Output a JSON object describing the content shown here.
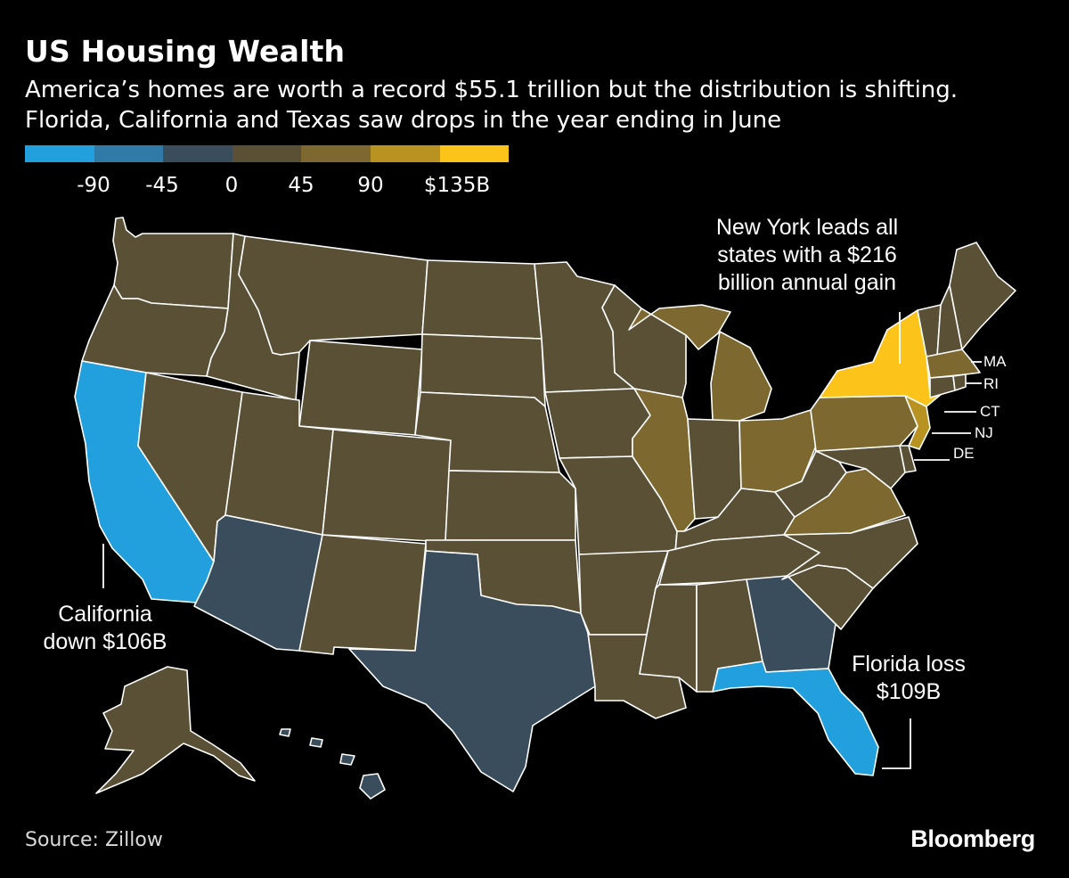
{
  "title": "US Housing Wealth",
  "subtitle_lines": [
    "America’s homes are worth a record $55.1 trillion but the distribution is shifting.",
    "Florida, California and Texas saw drops in the year ending in June"
  ],
  "legend": {
    "colors": [
      "#22a0dd",
      "#2f7aa6",
      "#3a4d5c",
      "#5a5035",
      "#7d6930",
      "#b89322",
      "#fcc41b"
    ],
    "ticks": [
      "-90",
      "-45",
      "0",
      "45",
      "90",
      "$135B"
    ]
  },
  "map": {
    "colors": {
      "california": "#22a0dd",
      "florida": "#22a0dd",
      "texas": "#3a4d5c",
      "arizona": "#3a4d5c",
      "georgia": "#3a4d5c",
      "new_york": "#fcc41b",
      "new_jersey": "#b89322",
      "illinois": "#7d6930",
      "michigan": "#7d6930",
      "ohio": "#7d6930",
      "pennsylvania": "#7d6930",
      "virginia": "#7d6930",
      "massachusetts": "#7d6930",
      "other": "#5a5035",
      "border": "#ffffff"
    }
  },
  "annotations": {
    "new_york": [
      "New York leads all",
      "states with a $216",
      "billion annual gain"
    ],
    "california": [
      "California",
      "down $106B"
    ],
    "florida": [
      "Florida loss",
      "$109B"
    ]
  },
  "state_labels": {
    "ma": "MA",
    "ri": "RI",
    "ct": "CT",
    "nj": "NJ",
    "de": "DE"
  },
  "source": "Source: Zillow",
  "brand": "Bloomberg"
}
